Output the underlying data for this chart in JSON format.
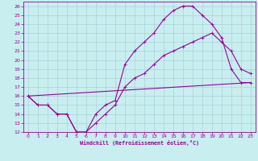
{
  "xlabel": "Windchill (Refroidissement éolien,°C)",
  "bg_color": "#c8eef0",
  "grid_color": "#aad4d8",
  "line_color": "#990099",
  "xlim": [
    -0.5,
    23.5
  ],
  "ylim": [
    12,
    26.5
  ],
  "xticks": [
    0,
    1,
    2,
    3,
    4,
    5,
    6,
    7,
    8,
    9,
    10,
    11,
    12,
    13,
    14,
    15,
    16,
    17,
    18,
    19,
    20,
    21,
    22,
    23
  ],
  "yticks": [
    12,
    13,
    14,
    15,
    16,
    17,
    18,
    19,
    20,
    21,
    22,
    23,
    24,
    25,
    26
  ],
  "line1_x": [
    0,
    1,
    2,
    3,
    4,
    5,
    6,
    7,
    8,
    9,
    10,
    11,
    12,
    13,
    14,
    15,
    16,
    17,
    18,
    19,
    20,
    21,
    22,
    23
  ],
  "line1_y": [
    16,
    15,
    15,
    14,
    14,
    12,
    12,
    14,
    15,
    15.5,
    19.5,
    21,
    22,
    23,
    24.5,
    25.5,
    26,
    26,
    25,
    24,
    22.5,
    19,
    17.5,
    17.5
  ],
  "line2_x": [
    0,
    1,
    2,
    3,
    4,
    5,
    6,
    7,
    8,
    9,
    10,
    11,
    12,
    13,
    14,
    15,
    16,
    17,
    18,
    19,
    20,
    21,
    22,
    23
  ],
  "line2_y": [
    16,
    15,
    15,
    14,
    14,
    12,
    12,
    13,
    14,
    15,
    17,
    18,
    18.5,
    19.5,
    20.5,
    21,
    21.5,
    22,
    22.5,
    23,
    22,
    21,
    19,
    18.5
  ],
  "line3_x": [
    0,
    23
  ],
  "line3_y": [
    16,
    17.5
  ]
}
